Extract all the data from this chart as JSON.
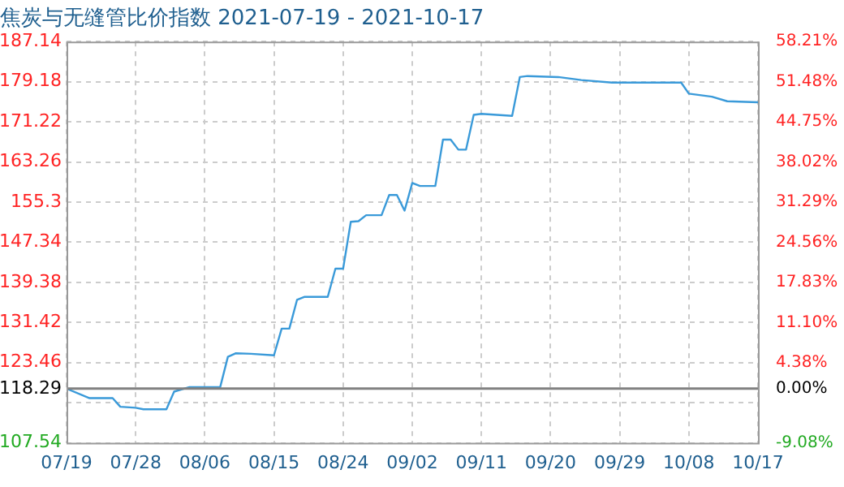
{
  "chart_data": {
    "type": "line",
    "title": "焦炭与无缝管比价指数 2021-07-19 - 2021-10-17",
    "x": [
      "2021-07-19",
      "2021-07-22",
      "2021-07-25",
      "2021-07-26",
      "2021-07-28",
      "2021-07-29",
      "2021-08-01",
      "2021-08-02",
      "2021-08-04",
      "2021-08-08",
      "2021-08-09",
      "2021-08-10",
      "2021-08-12",
      "2021-08-15",
      "2021-08-16",
      "2021-08-17",
      "2021-08-18",
      "2021-08-19",
      "2021-08-22",
      "2021-08-23",
      "2021-08-24",
      "2021-08-25",
      "2021-08-26",
      "2021-08-27",
      "2021-08-29",
      "2021-08-30",
      "2021-08-31",
      "2021-09-01",
      "2021-09-02",
      "2021-09-03",
      "2021-09-05",
      "2021-09-06",
      "2021-09-07",
      "2021-09-08",
      "2021-09-09",
      "2021-09-10",
      "2021-09-11",
      "2021-09-15",
      "2021-09-16",
      "2021-09-17",
      "2021-09-21",
      "2021-09-24",
      "2021-09-28",
      "2021-10-07",
      "2021-10-08",
      "2021-10-11",
      "2021-10-13",
      "2021-10-17"
    ],
    "series": [
      {
        "color": "#3a9ad9",
        "values": [
          118.3,
          116.4,
          116.4,
          114.7,
          114.5,
          114.2,
          114.2,
          117.7,
          118.6,
          118.6,
          124.6,
          125.3,
          125.2,
          124.9,
          130.2,
          130.2,
          135.9,
          136.5,
          136.5,
          142.1,
          142.1,
          151.4,
          151.5,
          152.7,
          152.7,
          156.7,
          156.7,
          153.6,
          159.1,
          158.5,
          158.5,
          167.7,
          167.7,
          165.7,
          165.7,
          172.6,
          172.8,
          172.4,
          180.1,
          180.3,
          180.1,
          179.5,
          179.0,
          179.0,
          176.8,
          176.2,
          175.3,
          175.1
        ]
      }
    ],
    "xlim": [
      "2021-07-19",
      "2021-10-17"
    ],
    "xticks": [
      {
        "value": "2021-07-19",
        "label": "07/19"
      },
      {
        "value": "2021-07-28",
        "label": "07/28"
      },
      {
        "value": "2021-08-06",
        "label": "08/06"
      },
      {
        "value": "2021-08-15",
        "label": "08/15"
      },
      {
        "value": "2021-08-24",
        "label": "08/24"
      },
      {
        "value": "2021-09-02",
        "label": "09/02"
      },
      {
        "value": "2021-09-11",
        "label": "09/11"
      },
      {
        "value": "2021-09-20",
        "label": "09/20"
      },
      {
        "value": "2021-09-29",
        "label": "09/29"
      },
      {
        "value": "2021-10-08",
        "label": "10/08"
      },
      {
        "value": "2021-10-17",
        "label": "10/17"
      }
    ],
    "ylim": [
      107.54,
      187.14
    ],
    "yticks": [
      107.54,
      {
        "value": 115.5,
        "label": null
      },
      118.29,
      123.46,
      131.42,
      139.38,
      147.34,
      155.3,
      163.26,
      171.22,
      179.18,
      187.14
    ],
    "y2lim": [
      -9.08,
      58.21
    ],
    "y2ticks": [
      {
        "value": -9.08,
        "label": "-9.08%"
      },
      {
        "value": 0,
        "label": "0.00%"
      },
      {
        "value": 4.38,
        "label": "4.38%"
      },
      {
        "value": 11.1,
        "label": "11.10%"
      },
      {
        "value": 17.83,
        "label": "17.83%"
      },
      {
        "value": 24.56,
        "label": "24.56%"
      },
      {
        "value": 31.29,
        "label": "31.29%"
      },
      {
        "value": 38.02,
        "label": "38.02%"
      },
      {
        "value": 44.75,
        "label": "44.75%"
      },
      {
        "value": 51.48,
        "label": "51.48%"
      },
      {
        "value": 58.21,
        "label": "58.21%"
      }
    ],
    "ref_lines": [
      {
        "axis": "y",
        "value": 118.29,
        "color": "#808080"
      }
    ],
    "grid": true,
    "marker": "none",
    "line_style": "solid",
    "legend": false
  }
}
